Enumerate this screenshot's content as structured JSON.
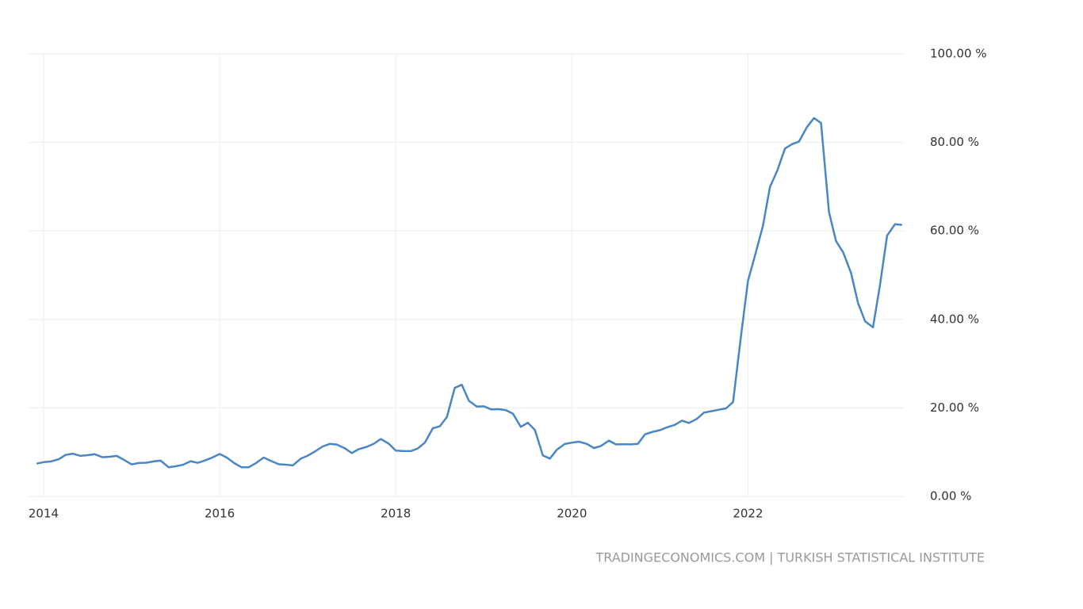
{
  "chart_data": {
    "type": "line",
    "source": "TRADINGECONOMICS.COM | TURKISH STATISTICAL INSTITUTE",
    "x": [
      2013.92,
      2014.0,
      2014.08,
      2014.17,
      2014.25,
      2014.33,
      2014.42,
      2014.5,
      2014.58,
      2014.67,
      2014.75,
      2014.83,
      2014.92,
      2015.0,
      2015.08,
      2015.17,
      2015.25,
      2015.33,
      2015.42,
      2015.5,
      2015.58,
      2015.67,
      2015.75,
      2015.83,
      2015.92,
      2016.0,
      2016.08,
      2016.17,
      2016.25,
      2016.33,
      2016.42,
      2016.5,
      2016.58,
      2016.67,
      2016.75,
      2016.83,
      2016.92,
      2017.0,
      2017.08,
      2017.17,
      2017.25,
      2017.33,
      2017.42,
      2017.5,
      2017.58,
      2017.67,
      2017.75,
      2017.83,
      2017.92,
      2018.0,
      2018.08,
      2018.17,
      2018.25,
      2018.33,
      2018.42,
      2018.5,
      2018.58,
      2018.67,
      2018.75,
      2018.83,
      2018.92,
      2019.0,
      2019.08,
      2019.17,
      2019.25,
      2019.33,
      2019.42,
      2019.5,
      2019.58,
      2019.67,
      2019.75,
      2019.83,
      2019.92,
      2020.0,
      2020.08,
      2020.17,
      2020.25,
      2020.33,
      2020.42,
      2020.5,
      2020.58,
      2020.67,
      2020.75,
      2020.83,
      2020.92,
      2021.0,
      2021.08,
      2021.17,
      2021.25,
      2021.33,
      2021.42,
      2021.5,
      2021.58,
      2021.67,
      2021.75,
      2021.83,
      2021.92,
      2022.0,
      2022.08,
      2022.17,
      2022.25,
      2022.33,
      2022.42,
      2022.5,
      2022.58,
      2022.67,
      2022.75,
      2022.83,
      2022.92,
      2023.0,
      2023.08,
      2023.17,
      2023.25,
      2023.33,
      2023.42,
      2023.5,
      2023.58,
      2023.67,
      2023.75
    ],
    "series": [
      {
        "color": "#4a86c5",
        "values": [
          7.4,
          7.75,
          7.89,
          8.39,
          9.38,
          9.66,
          9.16,
          9.32,
          9.54,
          8.86,
          8.96,
          9.15,
          8.17,
          7.24,
          7.55,
          7.61,
          7.91,
          8.09,
          6.58,
          6.81,
          7.14,
          7.95,
          7.58,
          8.1,
          8.81,
          9.58,
          8.78,
          7.46,
          6.57,
          6.58,
          7.64,
          8.79,
          8.05,
          7.28,
          7.16,
          7.0,
          8.53,
          9.22,
          10.13,
          11.29,
          11.87,
          11.72,
          10.9,
          9.79,
          10.68,
          11.2,
          11.9,
          12.98,
          11.92,
          10.35,
          10.26,
          10.23,
          10.85,
          12.15,
          15.39,
          15.85,
          17.9,
          24.52,
          25.24,
          21.62,
          20.3,
          20.35,
          19.67,
          19.71,
          19.5,
          18.71,
          15.72,
          16.65,
          15.01,
          9.26,
          8.55,
          10.56,
          11.84,
          12.15,
          12.37,
          11.86,
          10.94,
          11.39,
          12.62,
          11.76,
          11.77,
          11.75,
          11.89,
          14.03,
          14.6,
          14.97,
          15.61,
          16.19,
          17.14,
          16.59,
          17.53,
          18.95,
          19.25,
          19.58,
          19.89,
          21.31,
          36.08,
          48.69,
          54.44,
          61.14,
          69.97,
          73.5,
          78.62,
          79.6,
          80.21,
          83.45,
          85.51,
          84.39,
          64.27,
          57.68,
          55.18,
          50.51,
          43.68,
          39.59,
          38.21,
          47.83,
          58.94,
          61.53,
          61.36
        ]
      }
    ],
    "xlim": [
      2013.82,
      2023.77
    ],
    "xticks": [
      2014,
      2016,
      2018,
      2020,
      2022
    ],
    "ylim": [
      0,
      100
    ],
    "yticks": [
      {
        "value": 0,
        "label": "0.00 %"
      },
      {
        "value": 20,
        "label": "20.00 %"
      },
      {
        "value": 40,
        "label": "40.00 %"
      },
      {
        "value": 60,
        "label": "60.00 %"
      },
      {
        "value": 80,
        "label": "80.00 %"
      },
      {
        "value": 100,
        "label": "100.00 %"
      }
    ],
    "grid": true
  }
}
